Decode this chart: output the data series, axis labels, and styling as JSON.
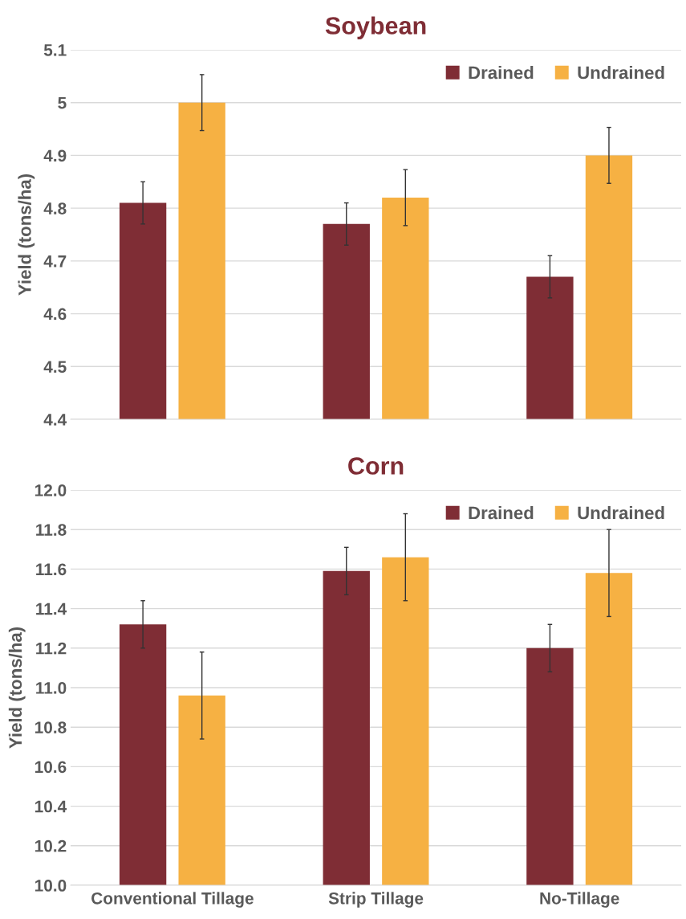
{
  "chart_data": [
    {
      "type": "bar",
      "title": "Soybean",
      "ylabel": "Yield (tons/ha)",
      "categories": [
        null,
        null,
        null
      ],
      "series": [
        {
          "name": "Drained",
          "color": "#7f2d35",
          "values": [
            4.81,
            4.77,
            4.67
          ],
          "errors": [
            0.04,
            0.04,
            0.04
          ]
        },
        {
          "name": "Undrained",
          "color": "#f6b143",
          "values": [
            5.0,
            4.82,
            4.9
          ],
          "errors": [
            0.053,
            0.053,
            0.053
          ]
        }
      ],
      "ylim": [
        4.4,
        5.1
      ],
      "yticks": [
        {
          "value": 4.4,
          "label": "4.4"
        },
        {
          "value": 4.5,
          "label": "4.5"
        },
        {
          "value": 4.6,
          "label": "4.6"
        },
        {
          "value": 4.7,
          "label": "4.7"
        },
        {
          "value": 4.8,
          "label": "4.8"
        },
        {
          "value": 4.9,
          "label": "4.9"
        },
        {
          "value": 5.0,
          "label": "5"
        },
        {
          "value": 5.1,
          "label": "5.1"
        }
      ],
      "grid": "y",
      "legend": "top right"
    },
    {
      "type": "bar",
      "title": "Corn",
      "ylabel": "Yield (tons/ha)",
      "categories": [
        "Conventional Tillage",
        "Strip Tillage",
        "No-Tillage"
      ],
      "series": [
        {
          "name": "Drained",
          "color": "#7f2d35",
          "values": [
            11.32,
            11.59,
            11.2
          ],
          "errors": [
            0.12,
            0.12,
            0.12
          ]
        },
        {
          "name": "Undrained",
          "color": "#f6b143",
          "values": [
            10.96,
            11.66,
            11.58
          ],
          "errors": [
            0.22,
            0.22,
            0.22
          ]
        }
      ],
      "ylim": [
        10.0,
        12.0
      ],
      "yticks": [
        {
          "value": 10.0,
          "label": "10.0"
        },
        {
          "value": 10.2,
          "label": "10.2"
        },
        {
          "value": 10.4,
          "label": "10.4"
        },
        {
          "value": 10.6,
          "label": "10.6"
        },
        {
          "value": 10.8,
          "label": "10.8"
        },
        {
          "value": 11.0,
          "label": "11.0"
        },
        {
          "value": 11.2,
          "label": "11.2"
        },
        {
          "value": 11.4,
          "label": "11.4"
        },
        {
          "value": 11.6,
          "label": "11.6"
        },
        {
          "value": 11.8,
          "label": "11.8"
        },
        {
          "value": 12.0,
          "label": "12.0"
        }
      ],
      "grid": "y",
      "legend": "top right"
    }
  ]
}
